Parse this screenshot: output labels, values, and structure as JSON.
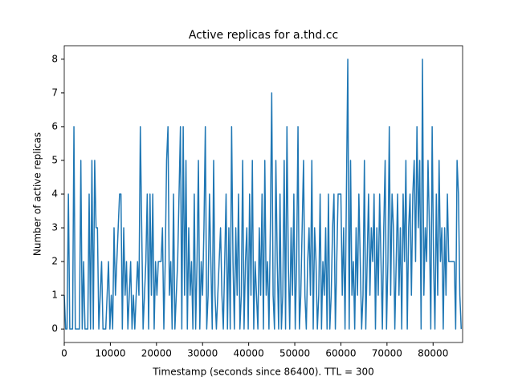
{
  "chart_data": {
    "type": "line",
    "title": "Active replicas for a.thd.cc",
    "x_label": "Timestamp (seconds since 86400). TTL = 300",
    "y_label": "Number of active replicas",
    "x": [
      0,
      300,
      600,
      900,
      1200,
      1500,
      1800,
      2100,
      2400,
      2700,
      3000,
      3300,
      3600,
      3900,
      4200,
      4500,
      4800,
      5100,
      5400,
      5700,
      6000,
      6300,
      6600,
      6900,
      7200,
      7500,
      7800,
      8100,
      8400,
      8700,
      9000,
      9300,
      9600,
      9900,
      10200,
      10500,
      10800,
      11100,
      11400,
      11700,
      12000,
      12300,
      12600,
      12900,
      13200,
      13500,
      13800,
      14100,
      14400,
      14700,
      15000,
      15300,
      15600,
      15900,
      16200,
      16500,
      16800,
      17100,
      17400,
      17700,
      18000,
      18300,
      18600,
      18900,
      19200,
      19500,
      19800,
      20100,
      20400,
      20700,
      21000,
      21300,
      21600,
      21900,
      22200,
      22500,
      22800,
      23100,
      23400,
      23700,
      24000,
      24300,
      24600,
      24900,
      25200,
      25500,
      25800,
      26100,
      26400,
      26700,
      27000,
      27300,
      27600,
      27900,
      28200,
      28500,
      28800,
      29100,
      29400,
      29700,
      30000,
      30300,
      30600,
      30900,
      31200,
      31500,
      31800,
      32100,
      32400,
      32700,
      33000,
      33300,
      33600,
      33900,
      34200,
      34500,
      34800,
      35100,
      35400,
      35700,
      36000,
      36300,
      36600,
      36900,
      37200,
      37500,
      37800,
      38100,
      38400,
      38700,
      39000,
      39300,
      39600,
      39900,
      40200,
      40500,
      40800,
      41100,
      41400,
      41700,
      42000,
      42300,
      42600,
      42900,
      43200,
      43500,
      43800,
      44100,
      44400,
      44700,
      45000,
      45300,
      45600,
      45900,
      46200,
      46500,
      46800,
      47100,
      47400,
      47700,
      48000,
      48300,
      48600,
      48900,
      49200,
      49500,
      49800,
      50100,
      50400,
      50700,
      51000,
      51300,
      51600,
      51900,
      52200,
      52500,
      52800,
      53100,
      53400,
      53700,
      54000,
      54300,
      54600,
      54900,
      55200,
      55500,
      55800,
      56100,
      56400,
      56700,
      57000,
      57300,
      57600,
      57900,
      58200,
      58500,
      58800,
      59100,
      59400,
      59700,
      60000,
      60300,
      60600,
      60900,
      61200,
      61500,
      61800,
      62100,
      62400,
      62700,
      63000,
      63300,
      63600,
      63900,
      64200,
      64500,
      64800,
      65100,
      65400,
      65700,
      66000,
      66300,
      66600,
      66900,
      67200,
      67500,
      67800,
      68100,
      68400,
      68700,
      69000,
      69300,
      69600,
      69900,
      70200,
      70500,
      70800,
      71100,
      71400,
      71700,
      72000,
      72300,
      72600,
      72900,
      73200,
      73500,
      73800,
      74100,
      74400,
      74700,
      75000,
      75300,
      75600,
      75900,
      76200,
      76500,
      76800,
      77100,
      77400,
      77700,
      78000,
      78300,
      78600,
      78900,
      79200,
      79500,
      79800,
      80100,
      80400,
      80700,
      81000,
      81300,
      81600,
      81900,
      82200,
      82500,
      82800,
      83100,
      83400,
      83700,
      84000,
      84300,
      84600,
      84900,
      85200,
      85500,
      85800,
      86100
    ],
    "series": [
      {
        "color": "#1f77b4",
        "values": [
          1,
          0,
          0,
          4,
          0,
          0,
          0,
          6,
          0,
          0,
          0,
          0,
          5,
          0,
          2,
          0,
          0,
          0,
          4,
          0,
          5,
          0,
          5,
          3,
          3,
          0,
          1,
          2,
          0,
          0,
          0,
          1,
          2,
          0,
          1,
          0,
          3,
          1,
          2,
          3,
          4,
          4,
          0,
          3,
          1,
          2,
          0,
          1,
          2,
          0,
          1,
          0,
          1,
          2,
          1,
          6,
          3,
          0,
          1,
          2,
          4,
          0,
          4,
          1,
          4,
          0,
          2,
          1,
          2,
          2,
          2,
          3,
          0,
          2,
          5,
          6,
          1,
          2,
          0,
          4,
          0,
          1,
          2,
          4,
          6,
          0,
          6,
          1,
          5,
          0,
          3,
          1,
          2,
          0,
          4,
          0,
          2,
          5,
          0,
          2,
          1,
          3,
          6,
          0,
          1,
          4,
          2,
          0,
          5,
          1,
          0,
          1,
          2,
          3,
          1,
          0,
          2,
          4,
          0,
          3,
          0,
          6,
          2,
          0,
          3,
          1,
          4,
          0,
          1,
          5,
          0,
          2,
          3,
          0,
          4,
          1,
          5,
          0,
          2,
          1,
          0,
          3,
          1,
          4,
          0,
          5,
          1,
          2,
          0,
          3,
          7,
          1,
          0,
          5,
          2,
          0,
          4,
          0,
          1,
          5,
          0,
          6,
          2,
          0,
          3,
          1,
          4,
          0,
          2,
          6,
          0,
          1,
          3,
          5,
          1,
          0,
          2,
          3,
          1,
          5,
          0,
          3,
          2,
          0,
          1,
          4,
          0,
          2,
          1,
          3,
          0,
          4,
          0,
          1,
          3,
          4,
          0,
          2,
          4,
          4,
          4,
          1,
          3,
          0,
          4,
          8,
          0,
          5,
          1,
          2,
          0,
          3,
          1,
          4,
          2,
          0,
          1,
          5,
          0,
          2,
          4,
          1,
          3,
          2,
          4,
          0,
          3,
          1,
          4,
          2,
          0,
          3,
          5,
          0,
          2,
          6,
          1,
          4,
          3,
          0,
          2,
          4,
          1,
          3,
          0,
          4,
          2,
          5,
          0,
          3,
          4,
          1,
          4,
          5,
          2,
          6,
          3,
          5,
          0,
          8,
          1,
          3,
          2,
          5,
          3,
          0,
          6,
          2,
          0,
          4,
          1,
          5,
          2,
          3,
          0,
          3,
          1,
          4,
          2,
          2,
          2,
          2,
          2,
          0,
          5,
          4,
          1,
          0
        ]
      }
    ],
    "xlim": [
      0,
      86400
    ],
    "ylim": [
      -0.4,
      8.4
    ],
    "xticks": [
      0,
      10000,
      20000,
      30000,
      40000,
      50000,
      60000,
      70000,
      80000
    ],
    "yticks": [
      0,
      1,
      2,
      3,
      4,
      5,
      6,
      7,
      8
    ]
  }
}
